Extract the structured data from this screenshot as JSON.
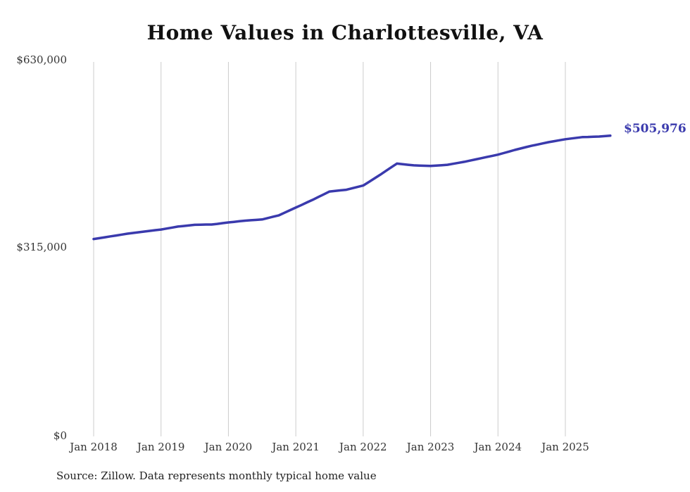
{
  "title": "Home Values in Charlottesville, VA",
  "end_label": "$505,976",
  "source_note": "Source: Zillow. Data represents monthly typical home value",
  "colors": {
    "line": "#3a3aad",
    "end_label": "#3a3aad",
    "grid": "#cccccc",
    "axis_text": "#333333",
    "title_text": "#111111",
    "background": "#ffffff"
  },
  "chart_data": {
    "type": "line",
    "title": "Home Values in Charlottesville, VA",
    "xlabel": "",
    "ylabel": "",
    "ylim": [
      0,
      630000
    ],
    "grid": "vertical-only",
    "legend": "none",
    "y_tick_labels": [
      "$630,000",
      "$315,000",
      "$0"
    ],
    "y_tick_values": [
      630000,
      315000,
      0
    ],
    "x_tick_labels": [
      "Jan 2018",
      "Jan 2019",
      "Jan 2020",
      "Jan 2021",
      "Jan 2022",
      "Jan 2023",
      "Jan 2024",
      "Jan 2025"
    ],
    "start_month": "2018-01",
    "end_month": "2025-09",
    "final_value": 505976,
    "final_value_label": "$505,976",
    "series": [
      {
        "name": "Typical home value (monthly)",
        "monthly_values": [
          332000,
          333500,
          335000,
          336500,
          338000,
          339500,
          341000,
          342200,
          343400,
          344600,
          345800,
          347000,
          348000,
          349700,
          351300,
          353000,
          354000,
          355000,
          356000,
          356200,
          356400,
          356500,
          357500,
          358800,
          360000,
          361000,
          362000,
          363000,
          363700,
          364300,
          365000,
          367300,
          369700,
          372000,
          376300,
          380700,
          385000,
          389300,
          393700,
          398000,
          402700,
          407300,
          412000,
          413000,
          414000,
          415000,
          417300,
          419700,
          422000,
          428000,
          434000,
          440000,
          446300,
          452700,
          459000,
          458000,
          457000,
          456000,
          455700,
          455300,
          455000,
          455700,
          456300,
          457000,
          458700,
          460300,
          462000,
          464000,
          466000,
          468000,
          470000,
          472000,
          474000,
          476700,
          479300,
          482000,
          484300,
          486700,
          489000,
          491000,
          493000,
          495000,
          496700,
          498300,
          500000,
          501200,
          502400,
          503500,
          503800,
          504200,
          504500,
          505200,
          505976
        ]
      }
    ]
  }
}
